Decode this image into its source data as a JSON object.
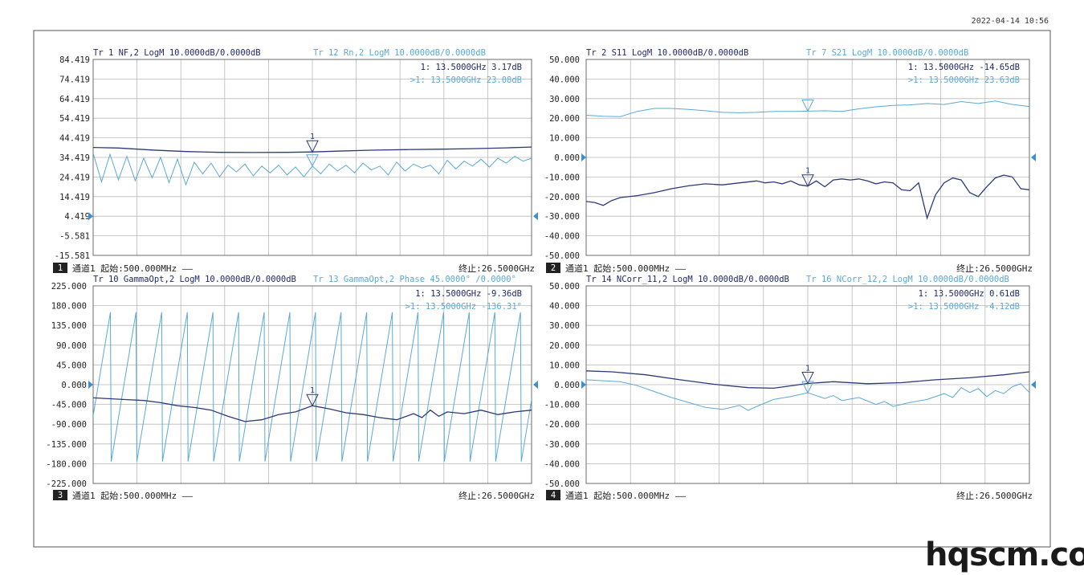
{
  "timestamp": "2022-04-14 10:56",
  "watermark": "hqscm.com",
  "colors": {
    "dark": "#2b3a78",
    "light": "#5aa9d6",
    "grid": "#b9b9b9",
    "frame": "#6b6b6b",
    "text": "#1f2a66"
  },
  "chart_data": [
    {
      "type": "line",
      "title": "Tr 1  NF,2 LogM 10.0000dB/0.0000dB",
      "title2": "Tr 12 Rn,2 LogM 10.0000dB/0.0000dB",
      "channel": "1",
      "chan_label": "通道1  起始:500.000MHz ——",
      "stop_label": "终止:26.5000GHz",
      "marker1": "1:    13.5000GHz  3.17dB",
      "marker2": ">1:    13.5000GHz  23.08dB",
      "ytick_labels": [
        "84.419",
        "74.419",
        "64.419",
        "54.419",
        "44.419",
        "34.419",
        "24.419",
        "14.419",
        "4.419",
        "-5.581",
        "-15.581"
      ],
      "ylim": [
        -15.581,
        84.419
      ],
      "xlim_ghz": [
        0.5,
        26.5
      ],
      "marker_x_ghz": 13.5,
      "ref_level": 4.419,
      "series": [
        {
          "color": "dark",
          "x": [
            0.5,
            2,
            4,
            6,
            8,
            10,
            12,
            13.5,
            15,
            17,
            19,
            21,
            23,
            25,
            26.5
          ],
          "y": [
            39.5,
            39.2,
            38.2,
            37.4,
            37.0,
            36.9,
            37.0,
            37.2,
            37.6,
            38.1,
            38.4,
            38.6,
            38.9,
            39.3,
            39.7
          ]
        },
        {
          "color": "light",
          "x": [
            0.5,
            1.0,
            1.5,
            2.0,
            2.5,
            3.0,
            3.5,
            4.0,
            4.5,
            5.0,
            5.5,
            6.0,
            6.5,
            7.0,
            7.5,
            8.0,
            8.5,
            9.0,
            9.5,
            10.0,
            10.5,
            11.0,
            11.5,
            12.0,
            12.5,
            13.0,
            13.5,
            14.0,
            14.5,
            15.0,
            15.5,
            16.0,
            16.5,
            17.0,
            17.5,
            18.0,
            18.5,
            19.0,
            19.5,
            20.0,
            20.5,
            21.0,
            21.5,
            22.0,
            22.5,
            23.0,
            23.5,
            24.0,
            24.5,
            25.0,
            25.5,
            26.0,
            26.5
          ],
          "y": [
            36.5,
            22.0,
            36.0,
            23.0,
            35.0,
            22.5,
            34.0,
            24.0,
            34.5,
            21.5,
            33.5,
            20.5,
            32.0,
            26.0,
            31.5,
            24.5,
            30.5,
            27.0,
            31.0,
            25.0,
            30.0,
            26.5,
            30.5,
            25.5,
            29.5,
            24.5,
            30.0,
            26.0,
            31.0,
            27.5,
            30.5,
            26.5,
            31.5,
            28.0,
            30.0,
            25.5,
            32.0,
            27.5,
            31.0,
            29.0,
            30.5,
            26.0,
            33.0,
            28.5,
            32.5,
            30.0,
            33.5,
            29.5,
            34.0,
            31.5,
            35.0,
            32.5,
            34.0
          ]
        }
      ]
    },
    {
      "type": "line",
      "title": "Tr 2  S11 LogM 10.0000dB/0.0000dB",
      "title2": "Tr 7  S21 LogM 10.0000dB/0.0000dB",
      "channel": "2",
      "chan_label": "通道1  起始:500.000MHz ——",
      "stop_label": "终止:26.5000GHz",
      "marker1": "1:    13.5000GHz  -14.65dB",
      "marker2": ">1:    13.5000GHz  23.63dB",
      "ytick_labels": [
        "50.000",
        "40.000",
        "30.000",
        "20.000",
        "10.000",
        "0.000",
        "-10.000",
        "-20.000",
        "-30.000",
        "-40.000",
        "-50.000"
      ],
      "ylim": [
        -50,
        50
      ],
      "xlim_ghz": [
        0.5,
        26.5
      ],
      "marker_x_ghz": 13.5,
      "ref_level": 0,
      "series": [
        {
          "color": "light",
          "x": [
            0.5,
            1.5,
            2.5,
            3.5,
            4.5,
            5.5,
            6.5,
            7.5,
            8.5,
            9.5,
            10.5,
            11.5,
            12.5,
            13.5,
            14.5,
            15.5,
            16.5,
            17.5,
            18.5,
            19.5,
            20.5,
            21.5,
            22.5,
            23.5,
            24.5,
            25.5,
            26.5
          ],
          "y": [
            21.5,
            21.0,
            20.8,
            23.5,
            25.0,
            25.0,
            24.5,
            23.8,
            23.0,
            22.8,
            23.0,
            23.5,
            23.5,
            23.6,
            23.8,
            23.5,
            24.8,
            25.8,
            26.5,
            26.8,
            27.5,
            27.0,
            28.5,
            27.5,
            28.8,
            27.0,
            26.0
          ]
        },
        {
          "color": "dark",
          "x": [
            0.5,
            1.0,
            1.5,
            2.0,
            2.5,
            3.5,
            4.5,
            5.5,
            6.5,
            7.5,
            8.5,
            9.5,
            10.5,
            11.0,
            11.5,
            12.0,
            12.5,
            13.0,
            13.5,
            14.0,
            14.5,
            15.0,
            15.5,
            16.0,
            16.5,
            17.0,
            17.5,
            18.0,
            18.5,
            19.0,
            19.5,
            20.0,
            20.5,
            21.0,
            21.5,
            22.0,
            22.5,
            23.0,
            23.5,
            24.0,
            24.5,
            25.0,
            25.5,
            26.0,
            26.5
          ],
          "y": [
            -22.5,
            -23.0,
            -24.5,
            -22.0,
            -20.5,
            -19.5,
            -18.0,
            -16.0,
            -14.5,
            -13.5,
            -14.0,
            -13.0,
            -12.0,
            -13.0,
            -12.5,
            -13.5,
            -12.0,
            -14.0,
            -14.65,
            -12.0,
            -15.0,
            -11.5,
            -11.0,
            -11.5,
            -11.0,
            -12.0,
            -13.5,
            -12.5,
            -13.0,
            -16.5,
            -17.0,
            -13.0,
            -31.0,
            -19.0,
            -13.0,
            -10.5,
            -11.5,
            -18.0,
            -20.0,
            -15.0,
            -10.5,
            -9.0,
            -10.0,
            -16.0,
            -16.5
          ]
        }
      ]
    },
    {
      "type": "line",
      "title": "Tr 10 GammaOpt,2 LogM 10.0000dB/0.0000dB",
      "title2": "Tr 13 GammaOpt,2 Phase 45.0000° /0.0000°",
      "channel": "3",
      "chan_label": "通道1  起始:500.000MHz ——",
      "stop_label": "终止:26.5000GHz",
      "marker1": "1:    13.5000GHz  -9.36dB",
      "marker2": ">1:    13.5000GHz  -136.31°",
      "ytick_labels": [
        "225.000",
        "180.000",
        "135.000",
        "90.000",
        "45.000",
        "0.000",
        "-45.000",
        "-90.000",
        "-135.000",
        "-180.000",
        "-225.000"
      ],
      "ylim": [
        -225,
        225
      ],
      "xlim_ghz": [
        0.5,
        26.5
      ],
      "marker_x_ghz": 13.5,
      "ref_level": 0,
      "sawtooth": {
        "period_ghz": 1.52,
        "offset_ghz": 0.5,
        "high": 165,
        "low": -175,
        "color": "light"
      },
      "series": [
        {
          "color": "dark",
          "x": [
            0.5,
            1.5,
            2.5,
            3.5,
            4.5,
            5.5,
            6.5,
            7.5,
            8.5,
            9.5,
            10.5,
            11.5,
            12.5,
            13.5,
            14.5,
            15.5,
            16.5,
            17.5,
            18.5,
            19.5,
            20.0,
            20.5,
            21.0,
            21.5,
            22.5,
            23.5,
            24.5,
            25.5,
            26.5
          ],
          "y": [
            -30,
            -32,
            -34,
            -36,
            -41,
            -48,
            -52,
            -58,
            -72,
            -84,
            -80,
            -68,
            -62,
            -48,
            -55,
            -64,
            -68,
            -75,
            -80,
            -66,
            -75,
            -58,
            -72,
            -62,
            -66,
            -58,
            -68,
            -62,
            -58
          ]
        }
      ]
    },
    {
      "type": "line",
      "title": "Tr 14 NCorr_11,2 LogM 10.0000dB/0.0000dB",
      "title2": "Tr 16 NCorr_12,2 LogM 10.0000dB/0.0000dB",
      "channel": "4",
      "chan_label": "通道1  起始:500.000MHz ——",
      "stop_label": "终止:26.5000GHz",
      "marker1": "1:    13.5000GHz  0.61dB",
      "marker2": ">1:    13.5000GHz  -4.12dB",
      "ytick_labels": [
        "50.000",
        "40.000",
        "30.000",
        "20.000",
        "10.000",
        "0.000",
        "-10.000",
        "-20.000",
        "-30.000",
        "-40.000",
        "-50.000"
      ],
      "ylim": [
        -50,
        50
      ],
      "xlim_ghz": [
        0.5,
        26.5
      ],
      "marker_x_ghz": 13.5,
      "ref_level": 0,
      "series": [
        {
          "color": "dark",
          "x": [
            0.5,
            2,
            4,
            6,
            8,
            10,
            11.5,
            13.5,
            15,
            17,
            19,
            21,
            23,
            25,
            26.5
          ],
          "y": [
            7.0,
            6.5,
            5.0,
            2.5,
            0.2,
            -1.5,
            -1.8,
            0.6,
            1.5,
            0.5,
            1.0,
            2.5,
            3.5,
            5.0,
            6.5
          ]
        },
        {
          "color": "light",
          "x": [
            0.5,
            1.5,
            2.5,
            3.5,
            4.5,
            5.5,
            6.5,
            7.5,
            8.5,
            9.5,
            10.0,
            10.5,
            11.5,
            12.5,
            13.5,
            14.5,
            15.0,
            15.5,
            16.5,
            17.5,
            18.0,
            18.5,
            19.5,
            20.5,
            21.5,
            22.0,
            22.5,
            23.0,
            23.5,
            24.0,
            24.5,
            25.0,
            25.5,
            26.0,
            26.5
          ],
          "y": [
            2.5,
            2.0,
            1.5,
            -0.5,
            -3.5,
            -6.5,
            -9.0,
            -11.5,
            -12.5,
            -10.5,
            -13.0,
            -11.0,
            -7.5,
            -6.0,
            -4.1,
            -7.0,
            -5.5,
            -8.0,
            -6.5,
            -10.0,
            -8.5,
            -11.0,
            -9.0,
            -7.5,
            -4.5,
            -6.5,
            -1.5,
            -4.0,
            -2.0,
            -6.0,
            -3.0,
            -4.5,
            -1.0,
            0.5,
            -4.0
          ]
        }
      ]
    }
  ]
}
